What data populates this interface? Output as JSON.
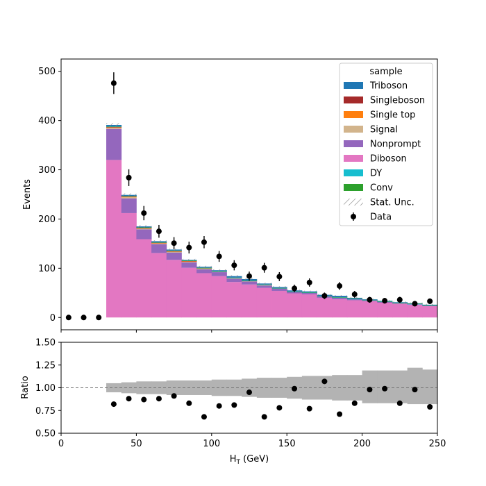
{
  "chart_data": [
    {
      "type": "bar",
      "stacked": true,
      "panel": "main",
      "xlabel": "",
      "ylabel": "Events",
      "xlim": [
        0,
        250
      ],
      "ylim": [
        -25,
        525
      ],
      "yticks": [
        0,
        100,
        200,
        300,
        400,
        500
      ],
      "bin_edges": [
        30,
        40,
        50,
        60,
        70,
        80,
        90,
        100,
        110,
        120,
        130,
        140,
        150,
        160,
        170,
        180,
        190,
        200,
        210,
        220,
        230,
        240,
        250
      ],
      "series": [
        {
          "name": "Diboson",
          "color": "#e377c2",
          "values": [
            320,
            212,
            159,
            131,
            117,
            101,
            90,
            84,
            72,
            67,
            60,
            54,
            49,
            47,
            40,
            37,
            35,
            33,
            30,
            28,
            26,
            23
          ]
        },
        {
          "name": "Nonprompt",
          "color": "#9467bd",
          "values": [
            63,
            30,
            20,
            18,
            15,
            11,
            8,
            8,
            7,
            6,
            5,
            5,
            3,
            3,
            3,
            3,
            2,
            2,
            2,
            1,
            1,
            1
          ]
        },
        {
          "name": "Signal",
          "color": "#d2b48c",
          "values": [
            2,
            2,
            1,
            1,
            1,
            1,
            1,
            1,
            1,
            1,
            1,
            0,
            0,
            0,
            0,
            0,
            0,
            0,
            0,
            0,
            0,
            0
          ]
        },
        {
          "name": "Single top",
          "color": "#ff7f0e",
          "values": [
            1,
            1,
            1,
            1,
            1,
            1,
            1,
            0,
            0,
            0,
            0,
            0,
            0,
            0,
            0,
            0,
            0,
            0,
            0,
            0,
            0,
            0
          ]
        },
        {
          "name": "Singleboson",
          "color": "#a52a2a",
          "values": [
            1,
            1,
            1,
            1,
            1,
            1,
            0,
            0,
            0,
            0,
            0,
            0,
            0,
            0,
            0,
            0,
            0,
            0,
            0,
            0,
            0,
            0
          ]
        },
        {
          "name": "DY",
          "color": "#17becf",
          "values": [
            0.5,
            0.5,
            0.5,
            0.5,
            0.5,
            0.5,
            0.5,
            0.5,
            0.5,
            0.5,
            0.5,
            0.5,
            0.5,
            0.5,
            0.5,
            0.5,
            0.5,
            0.5,
            0.5,
            0.5,
            0.5,
            0.5
          ]
        },
        {
          "name": "Conv",
          "color": "#2ca02c",
          "values": [
            0.5,
            0.5,
            0.5,
            0.5,
            0.5,
            0.5,
            0.5,
            0.5,
            0.5,
            0.5,
            0.5,
            0.5,
            0.5,
            0.5,
            0.5,
            0.5,
            0.5,
            0.5,
            0.5,
            0.5,
            0.5,
            0.5
          ]
        },
        {
          "name": "Triboson",
          "color": "#1f77b4",
          "values": [
            3,
            2,
            2,
            2,
            2,
            1,
            2,
            2,
            3,
            3,
            2,
            2,
            2,
            2,
            2,
            3,
            2,
            1,
            1,
            1,
            1,
            1
          ]
        }
      ],
      "stat_unc": {
        "name": "Stat. Unc.",
        "color": "#888888",
        "values": [
          4,
          3,
          2.5,
          2,
          2,
          2,
          2,
          2,
          2,
          2,
          1.5,
          1.5,
          1.5,
          1.5,
          1.5,
          1.5,
          1.5,
          1.5,
          1.5,
          1.5,
          1.5,
          1.5
        ]
      },
      "data": {
        "name": "Data",
        "x": [
          5,
          15,
          25,
          35,
          45,
          55,
          65,
          75,
          85,
          95,
          105,
          115,
          125,
          135,
          145,
          155,
          165,
          175,
          185,
          195,
          205,
          215,
          225,
          235,
          245
        ],
        "y": [
          0,
          0,
          0,
          476,
          284,
          212,
          175,
          151,
          142,
          153,
          124,
          106,
          84,
          101,
          83,
          59,
          71,
          44,
          64,
          47,
          36,
          34,
          36,
          28,
          33
        ],
        "yerr": [
          0,
          0,
          0,
          22,
          17,
          14.5,
          13,
          12.3,
          12,
          12.4,
          11,
          10.3,
          9.2,
          10,
          9.1,
          7.7,
          8.4,
          6.6,
          8,
          6.9,
          6,
          5.8,
          6,
          5.3,
          5.7
        ]
      },
      "legend": {
        "title": "sample",
        "placement": "top-right"
      }
    },
    {
      "type": "scatter",
      "panel": "ratio",
      "xlabel": "H_T (GeV)",
      "ylabel": "Ratio",
      "xlim": [
        0,
        250
      ],
      "ylim": [
        0.5,
        1.5
      ],
      "xticks": [
        0,
        50,
        100,
        150,
        200,
        250
      ],
      "yticks": [
        0.5,
        0.75,
        1.0,
        1.25,
        1.5
      ],
      "ytick_labels": [
        "0.50",
        "0.75",
        "1.00",
        "1.25",
        "1.50"
      ],
      "reference_line": 1.0,
      "unc_band": {
        "bin_edges": [
          30,
          40,
          50,
          60,
          70,
          80,
          90,
          100,
          110,
          120,
          130,
          140,
          150,
          160,
          170,
          180,
          190,
          200,
          210,
          220,
          230,
          240,
          250
        ],
        "lower": [
          0.95,
          0.94,
          0.93,
          0.93,
          0.92,
          0.92,
          0.92,
          0.91,
          0.91,
          0.9,
          0.89,
          0.89,
          0.88,
          0.87,
          0.87,
          0.86,
          0.86,
          0.83,
          0.83,
          0.83,
          0.82,
          0.82
        ],
        "upper": [
          1.05,
          1.06,
          1.07,
          1.07,
          1.08,
          1.08,
          1.08,
          1.09,
          1.09,
          1.1,
          1.11,
          1.11,
          1.12,
          1.13,
          1.13,
          1.14,
          1.14,
          1.19,
          1.19,
          1.19,
          1.22,
          1.2
        ]
      },
      "points": {
        "x": [
          35,
          45,
          55,
          65,
          75,
          85,
          95,
          105,
          115,
          125,
          135,
          145,
          155,
          165,
          175,
          185,
          195,
          205,
          215,
          225,
          235,
          245
        ],
        "y": [
          0.82,
          0.88,
          0.87,
          0.88,
          0.91,
          0.83,
          0.68,
          0.8,
          0.81,
          0.95,
          0.68,
          0.78,
          0.99,
          0.77,
          1.07,
          0.71,
          0.83,
          0.98,
          0.99,
          0.83,
          0.98,
          0.79
        ]
      }
    }
  ],
  "labels": {
    "xlabel_main": "H",
    "xlabel_sub": "T",
    "xlabel_unit": " (GeV)"
  }
}
